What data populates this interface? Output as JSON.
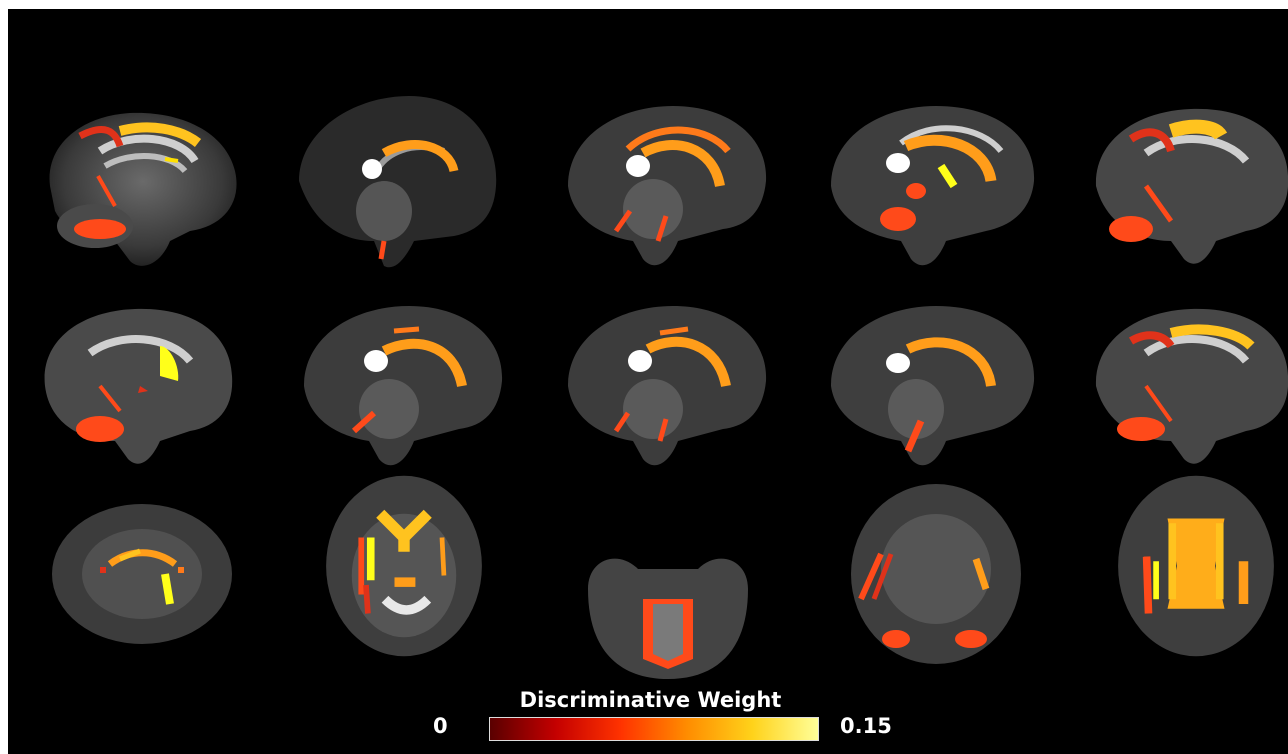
{
  "colorbar": {
    "title": "Discriminative Weight",
    "min_label": "0",
    "max_label": "0.15",
    "min_value": 0,
    "max_value": 0.15,
    "colors": [
      "#5a0000",
      "#c40000",
      "#ff3300",
      "#ff8c00",
      "#ffd21a",
      "#ffff99"
    ]
  },
  "panels": {
    "rows": [
      {
        "view": "sagittal",
        "count": 5
      },
      {
        "view": "sagittal",
        "count": 5
      },
      {
        "view": "axial",
        "count": 5
      }
    ]
  }
}
